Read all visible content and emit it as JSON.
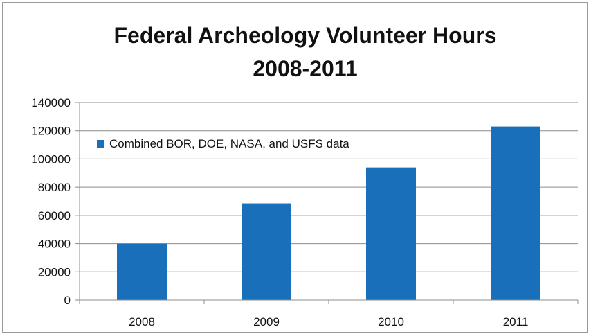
{
  "chart_data": {
    "type": "bar",
    "title_lines": [
      "Federal Archeology Volunteer Hours",
      "2008-2011"
    ],
    "categories": [
      "2008",
      "2009",
      "2010",
      "2011"
    ],
    "series": [
      {
        "name": "Combined BOR, DOE, NASA, and USFS data",
        "values": [
          40000,
          68500,
          94000,
          123000
        ],
        "color": "#1a6fba"
      }
    ],
    "xlabel": "",
    "ylabel": "",
    "ylim": [
      0,
      140000
    ],
    "yticks": [
      "0",
      "20000",
      "40000",
      "60000",
      "80000",
      "100000",
      "120000",
      "140000"
    ],
    "grid": true,
    "legend_position": "top-left"
  }
}
